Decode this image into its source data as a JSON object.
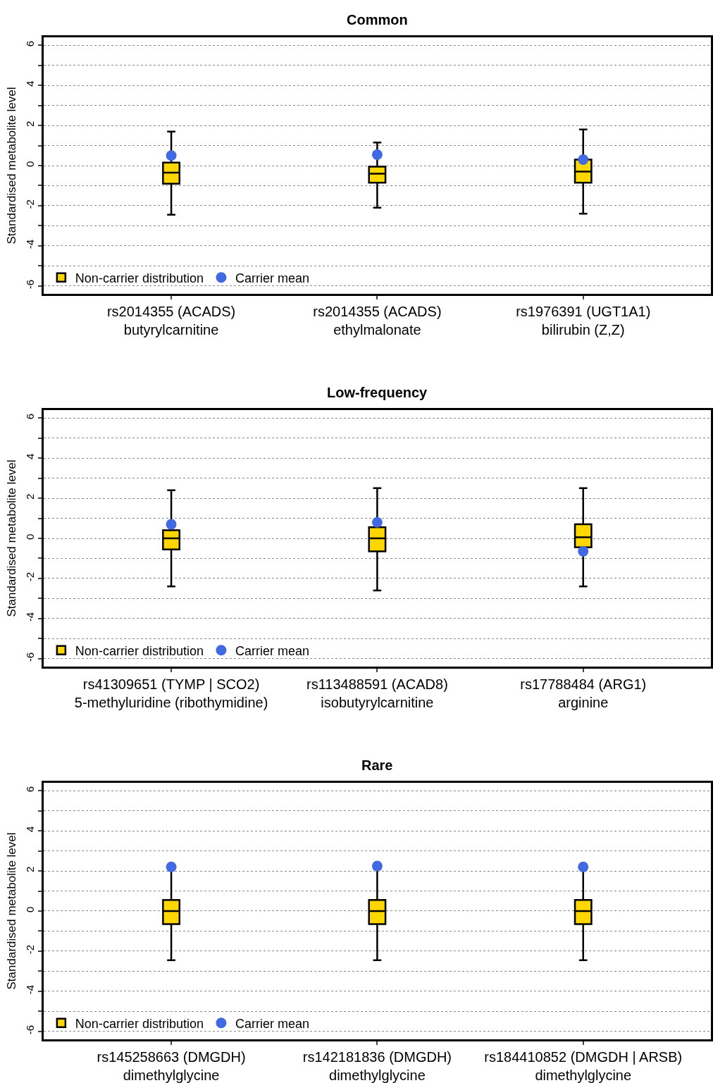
{
  "chart_data": [
    {
      "type": "box",
      "title": "Common",
      "ylabel": "Standardised metabolite level",
      "categories": [
        "rs2014355 (ACADS)\nbutyrylcarnitine",
        "rs2014355 (ACADS)\nethylmalonate",
        "rs1976391 (UGT1A1)\nbilirubin (Z,Z)"
      ],
      "series": [
        {
          "name": "Non-carrier distribution",
          "color": "#ffd700",
          "boxes": [
            {
              "low": -2.45,
              "q1": -0.9,
              "median": -0.35,
              "q3": 0.15,
              "high": 1.7
            },
            {
              "low": -2.1,
              "q1": -0.85,
              "median": -0.4,
              "q3": -0.05,
              "high": 1.15
            },
            {
              "low": -2.4,
              "q1": -0.85,
              "median": -0.3,
              "q3": 0.3,
              "high": 1.8
            }
          ]
        },
        {
          "name": "Carrier mean",
          "type": "scatter",
          "color": "#4169e1",
          "x": [
            "rs2014355 (ACADS)\nbutyrylcarnitine",
            "rs2014355 (ACADS)\nethylmalonate",
            "rs1976391 (UGT1A1)\nbilirubin (Z,Z)"
          ],
          "values": [
            0.5,
            0.55,
            0.3
          ]
        }
      ],
      "ylim": [
        -6.4,
        6.4
      ],
      "yticks": [
        -6,
        {
          "value": -5,
          "label": null
        },
        -4,
        {
          "value": -3,
          "label": null
        },
        -2,
        {
          "value": -1,
          "label": null
        },
        0,
        {
          "value": 1,
          "label": null
        },
        2,
        {
          "value": 3,
          "label": null
        },
        4,
        {
          "value": 5,
          "label": null
        },
        6
      ],
      "grid": "y",
      "legend": "bottom left",
      "marker": "circle"
    },
    {
      "type": "box",
      "title": "Low-frequency",
      "ylabel": "Standardised metabolite level",
      "categories": [
        "rs41309651 (TYMP | SCO2)\n5-methyluridine (ribothymidine)",
        "rs113488591 (ACAD8)\nisobutyrylcarnitine",
        "rs17788484 (ARG1)\narginine"
      ],
      "series": [
        {
          "name": "Non-carrier distribution",
          "color": "#ffd700",
          "boxes": [
            {
              "low": -2.4,
              "q1": -0.55,
              "median": 0,
              "q3": 0.4,
              "high": 2.4
            },
            {
              "low": -2.6,
              "q1": -0.65,
              "median": 0,
              "q3": 0.55,
              "high": 2.5
            },
            {
              "low": -2.4,
              "q1": -0.45,
              "median": 0.05,
              "q3": 0.7,
              "high": 2.5
            }
          ]
        },
        {
          "name": "Carrier mean",
          "type": "scatter",
          "color": "#4169e1",
          "x": [
            "rs41309651 (TYMP | SCO2)\n5-methyluridine (ribothymidine)",
            "rs113488591 (ACAD8)\nisobutyrylcarnitine",
            "rs17788484 (ARG1)\narginine"
          ],
          "values": [
            0.7,
            0.8,
            -0.65
          ]
        }
      ],
      "ylim": [
        -6.4,
        6.4
      ],
      "yticks": [
        -6,
        {
          "value": -5,
          "label": null
        },
        -4,
        {
          "value": -3,
          "label": null
        },
        -2,
        {
          "value": -1,
          "label": null
        },
        0,
        {
          "value": 1,
          "label": null
        },
        2,
        {
          "value": 3,
          "label": null
        },
        4,
        {
          "value": 5,
          "label": null
        },
        6
      ],
      "grid": "y",
      "legend": "bottom left",
      "marker": "circle"
    },
    {
      "type": "box",
      "title": "Rare",
      "ylabel": "Standardised metabolite level",
      "categories": [
        "rs145258663 (DMGDH)\ndimethylglycine",
        "rs142181836 (DMGDH)\ndimethylglycine",
        "rs184410852 (DMGDH | ARSB)\ndimethylglycine"
      ],
      "series": [
        {
          "name": "Non-carrier distribution",
          "color": "#ffd700",
          "boxes": [
            {
              "low": -2.45,
              "q1": -0.65,
              "median": 0,
              "q3": 0.55,
              "high": 2.1
            },
            {
              "low": -2.45,
              "q1": -0.65,
              "median": 0,
              "q3": 0.55,
              "high": 2.1
            },
            {
              "low": -2.45,
              "q1": -0.65,
              "median": 0,
              "q3": 0.55,
              "high": 2.1
            }
          ]
        },
        {
          "name": "Carrier mean",
          "type": "scatter",
          "color": "#4169e1",
          "x": [
            "rs145258663 (DMGDH)\ndimethylglycine",
            "rs142181836 (DMGDH)\ndimethylglycine",
            "rs184410852 (DMGDH | ARSB)\ndimethylglycine"
          ],
          "values": [
            2.2,
            2.25,
            2.2
          ]
        }
      ],
      "ylim": [
        -6.4,
        6.4
      ],
      "yticks": [
        -6,
        {
          "value": -5,
          "label": null
        },
        -4,
        {
          "value": -3,
          "label": null
        },
        -2,
        {
          "value": -1,
          "label": null
        },
        0,
        {
          "value": 1,
          "label": null
        },
        2,
        {
          "value": 3,
          "label": null
        },
        4,
        {
          "value": 5,
          "label": null
        },
        6
      ],
      "grid": "y",
      "legend": "bottom left",
      "marker": "circle"
    }
  ]
}
